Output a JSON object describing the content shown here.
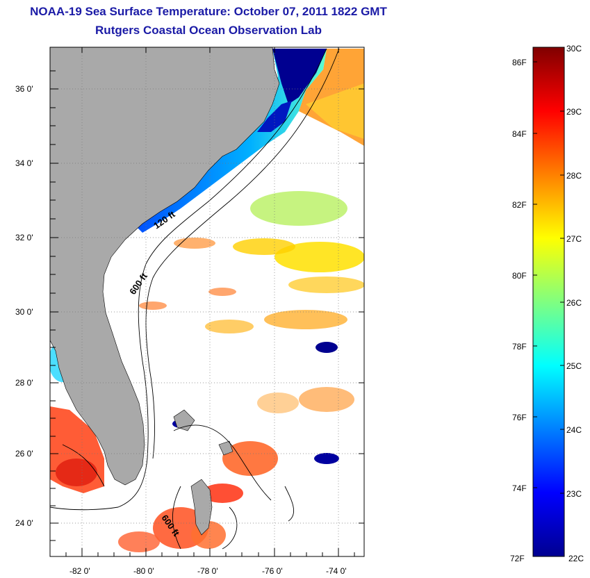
{
  "title": "NOAA-19 Sea Surface Temperature:  October 07, 2011 1822 GMT",
  "subtitle": "Rutgers Coastal Ocean Observation Lab",
  "map": {
    "lon_range": [
      -83,
      -73
    ],
    "lat_range": [
      23,
      37
    ],
    "lat_ticks": [
      "36 0'",
      "34 0'",
      "32 0'",
      "30 0'",
      "28 0'",
      "26 0'",
      "24 0'"
    ],
    "lon_ticks": [
      "-82 0'",
      "-80 0'",
      "-78 0'",
      "-76 0'",
      "-74 0'"
    ],
    "grid": true,
    "land_color": "#a9a9a9",
    "contour_labels": [
      "120 ft",
      "600 ft",
      "600 ft"
    ]
  },
  "colorbar": {
    "fahrenheit_labels": [
      "86F",
      "84F",
      "82F",
      "80F",
      "78F",
      "76F",
      "74F",
      "72F"
    ],
    "celsius_labels": [
      "30C",
      "29C",
      "28C",
      "27C",
      "26C",
      "25C",
      "24C",
      "23C",
      "22C"
    ],
    "colors": [
      "#000090",
      "#0000ff",
      "#0080ff",
      "#00ffff",
      "#80ff80",
      "#ffff00",
      "#ff8000",
      "#ff0000",
      "#800000"
    ]
  }
}
